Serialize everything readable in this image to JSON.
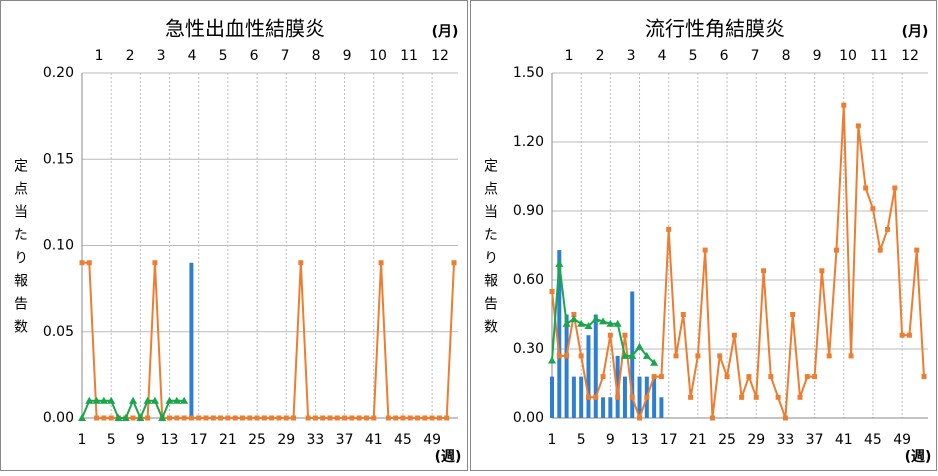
{
  "chart_data": [
    {
      "type": "combo",
      "title": "急性出血性結膜炎",
      "month_label": "(月)",
      "xlabel": "(週)",
      "ylabel": "定点当たり報告数",
      "months": [
        1,
        2,
        3,
        4,
        5,
        6,
        7,
        8,
        9,
        10,
        11,
        12
      ],
      "x": [
        1,
        2,
        3,
        4,
        5,
        6,
        7,
        8,
        9,
        10,
        11,
        12,
        13,
        14,
        15,
        16,
        17,
        18,
        19,
        20,
        21,
        22,
        23,
        24,
        25,
        26,
        27,
        28,
        29,
        30,
        31,
        32,
        33,
        34,
        35,
        36,
        37,
        38,
        39,
        40,
        41,
        42,
        43,
        44,
        45,
        46,
        47,
        48,
        49,
        50,
        51,
        52
      ],
      "xlim": [
        1,
        52
      ],
      "xticks": [
        1,
        5,
        9,
        13,
        17,
        21,
        25,
        29,
        33,
        37,
        41,
        45,
        49
      ],
      "ylim": [
        0,
        0.2
      ],
      "yticks": [
        {
          "value": 0,
          "label": "0.00"
        },
        {
          "value": 0.05,
          "label": "0.05"
        },
        {
          "value": 0.1,
          "label": "0.10"
        },
        {
          "value": 0.15,
          "label": "0.15"
        },
        {
          "value": 0.2,
          "label": "0.20"
        }
      ],
      "grid": true,
      "series": [
        {
          "type": "bar",
          "color": "#2e7fd0",
          "values": [
            0,
            0,
            0,
            0,
            0,
            0,
            0,
            0,
            0,
            0,
            0,
            0,
            0,
            0,
            0,
            0.09,
            null,
            null,
            null,
            null,
            null,
            null,
            null,
            null,
            null,
            null,
            null,
            null,
            null,
            null,
            null,
            null,
            null,
            null,
            null,
            null,
            null,
            null,
            null,
            null,
            null,
            null,
            null,
            null,
            null,
            null,
            null,
            null,
            null,
            null,
            null,
            null
          ]
        },
        {
          "type": "line",
          "marker": "square",
          "color": "#ed7d31",
          "values": [
            0.09,
            0.09,
            0,
            0,
            0,
            0,
            0,
            0,
            0,
            0,
            0.09,
            0,
            0,
            0,
            0,
            0,
            0,
            0,
            0,
            0,
            0,
            0,
            0,
            0,
            0,
            0,
            0,
            0,
            0,
            0,
            0.09,
            0,
            0,
            0,
            0,
            0,
            0,
            0,
            0,
            0,
            0,
            0.09,
            0,
            0,
            0,
            0,
            0,
            0,
            0,
            0,
            0,
            0.09
          ]
        },
        {
          "type": "line",
          "marker": "triangle",
          "color": "#1aa64b",
          "values": [
            0,
            0.01,
            0.01,
            0.01,
            0.01,
            0,
            0,
            0.01,
            0,
            0.01,
            0.01,
            0,
            0.01,
            0.01,
            0.01,
            null,
            null,
            null,
            null,
            null,
            null,
            null,
            null,
            null,
            null,
            null,
            null,
            null,
            null,
            null,
            null,
            null,
            null,
            null,
            null,
            null,
            null,
            null,
            null,
            null,
            null,
            null,
            null,
            null,
            null,
            null,
            null,
            null,
            null,
            null,
            null,
            null
          ]
        }
      ]
    },
    {
      "type": "combo",
      "title": "流行性角結膜炎",
      "month_label": "(月)",
      "xlabel": "(週)",
      "ylabel": "定点当たり報告数",
      "months": [
        1,
        2,
        3,
        4,
        5,
        6,
        7,
        8,
        9,
        10,
        11,
        12
      ],
      "x": [
        1,
        2,
        3,
        4,
        5,
        6,
        7,
        8,
        9,
        10,
        11,
        12,
        13,
        14,
        15,
        16,
        17,
        18,
        19,
        20,
        21,
        22,
        23,
        24,
        25,
        26,
        27,
        28,
        29,
        30,
        31,
        32,
        33,
        34,
        35,
        36,
        37,
        38,
        39,
        40,
        41,
        42,
        43,
        44,
        45,
        46,
        47,
        48,
        49,
        50,
        51,
        52
      ],
      "xlim": [
        1,
        52
      ],
      "xticks": [
        1,
        5,
        9,
        13,
        17,
        21,
        25,
        29,
        33,
        37,
        41,
        45,
        49
      ],
      "ylim": [
        0,
        1.5
      ],
      "yticks": [
        {
          "value": 0,
          "label": "0.00"
        },
        {
          "value": 0.3,
          "label": "0.30"
        },
        {
          "value": 0.6,
          "label": "0.60"
        },
        {
          "value": 0.9,
          "label": "0.90"
        },
        {
          "value": 1.2,
          "label": "1.20"
        },
        {
          "value": 1.5,
          "label": "1.50"
        }
      ],
      "grid": true,
      "series": [
        {
          "type": "bar",
          "color": "#2e7fd0",
          "values": [
            0.18,
            0.73,
            0.45,
            0.18,
            0.18,
            0.36,
            0.45,
            0.09,
            0.09,
            0.27,
            0.18,
            0.55,
            0.18,
            0.18,
            0.18,
            0.09,
            null,
            null,
            null,
            null,
            null,
            null,
            null,
            null,
            null,
            null,
            null,
            null,
            null,
            null,
            null,
            null,
            null,
            null,
            null,
            null,
            null,
            null,
            null,
            null,
            null,
            null,
            null,
            null,
            null,
            null,
            null,
            null,
            null,
            null,
            null,
            null
          ]
        },
        {
          "type": "line",
          "marker": "square",
          "color": "#ed7d31",
          "values": [
            0.55,
            0.27,
            0.27,
            0.45,
            0.27,
            0.09,
            0.09,
            0.18,
            0.36,
            0.09,
            0.36,
            0.09,
            0,
            0.09,
            0.18,
            0.18,
            0.82,
            0.27,
            0.45,
            0.09,
            0.27,
            0.73,
            0,
            0.27,
            0.18,
            0.36,
            0.09,
            0.18,
            0.09,
            0.64,
            0.18,
            0.09,
            0,
            0.45,
            0.09,
            0.18,
            0.18,
            0.64,
            0.27,
            0.73,
            1.36,
            0.27,
            1.27,
            1.0,
            0.91,
            0.73,
            0.82,
            1.0,
            0.36,
            0.36,
            0.73,
            0.18
          ]
        },
        {
          "type": "line",
          "marker": "triangle",
          "color": "#1aa64b",
          "values": [
            0.25,
            0.67,
            0.41,
            0.43,
            0.41,
            0.4,
            0.43,
            0.42,
            0.41,
            0.41,
            0.27,
            0.27,
            0.31,
            0.27,
            0.24,
            null,
            null,
            null,
            null,
            null,
            null,
            null,
            null,
            null,
            null,
            null,
            null,
            null,
            null,
            null,
            null,
            null,
            null,
            null,
            null,
            null,
            null,
            null,
            null,
            null,
            null,
            null,
            null,
            null,
            null,
            null,
            null,
            null,
            null,
            null,
            null,
            null
          ]
        }
      ]
    }
  ]
}
